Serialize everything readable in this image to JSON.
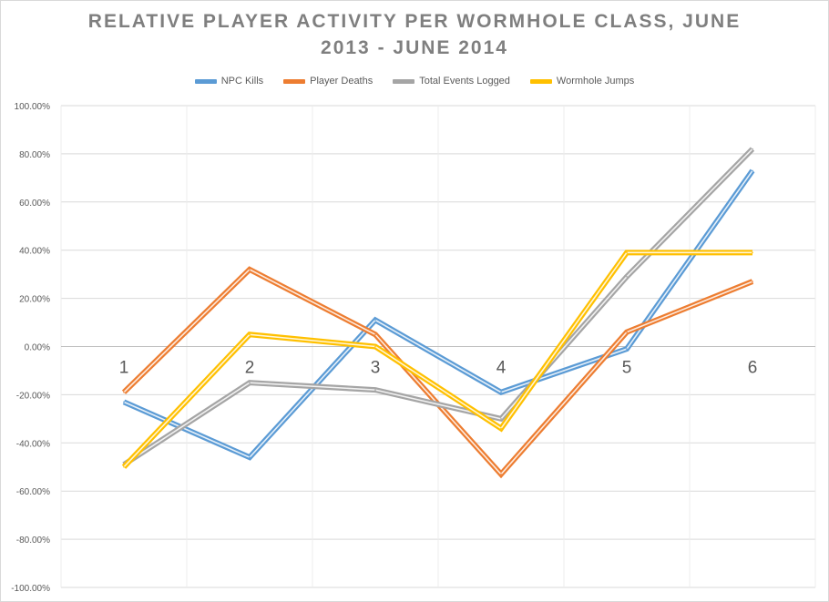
{
  "chart_data": {
    "type": "line",
    "title_lines": [
      "RELATIVE PLAYER ACTIVITY PER WORMHOLE CLASS, JUNE",
      "2013 - JUNE 2014"
    ],
    "categories": [
      "1",
      "2",
      "3",
      "4",
      "5",
      "6"
    ],
    "ylim": [
      -100,
      100
    ],
    "y_step": 20,
    "y_tick_labels": [
      "100.00%",
      "80.00%",
      "60.00%",
      "40.00%",
      "20.00%",
      "0.00%",
      "-20.00%",
      "-40.00%",
      "-60.00%",
      "-80.00%",
      "-100.00%"
    ],
    "xlabel": "",
    "ylabel": "",
    "grid": true,
    "legend_position": "top",
    "series": [
      {
        "name": "NPC Kills",
        "color": "#5b9bd5",
        "values": [
          -23,
          -46,
          11,
          -19,
          -1,
          73
        ]
      },
      {
        "name": "Player Deaths",
        "color": "#ed7d31",
        "values": [
          -19,
          32,
          5,
          -53,
          6,
          27
        ]
      },
      {
        "name": "Total Events Logged",
        "color": "#a5a5a5",
        "values": [
          -49,
          -15,
          -18,
          -30,
          29,
          82
        ]
      },
      {
        "name": "Wormhole Jumps",
        "color": "#ffc000",
        "values": [
          -50,
          5,
          0,
          -34,
          39,
          39
        ]
      }
    ]
  }
}
